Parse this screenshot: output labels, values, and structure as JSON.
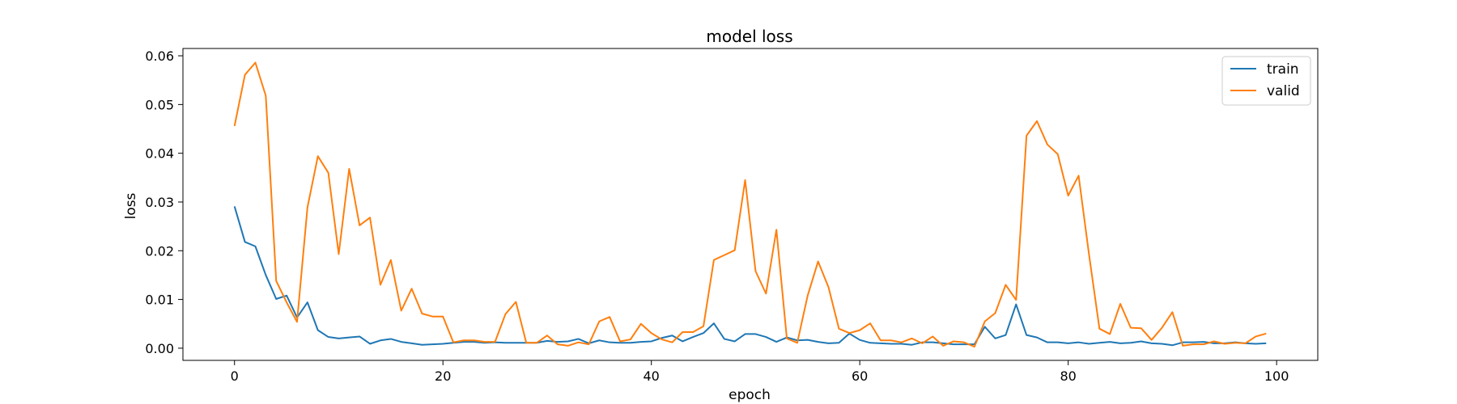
{
  "chart_data": {
    "type": "line",
    "title": "model loss",
    "xlabel": "epoch",
    "ylabel": "loss",
    "xlim": [
      -4.95,
      103.95
    ],
    "ylim": [
      -0.0025,
      0.0615
    ],
    "xticks": [
      0,
      20,
      40,
      60,
      80,
      100
    ],
    "xtick_labels": [
      "0",
      "20",
      "40",
      "60",
      "80",
      "100"
    ],
    "yticks": [
      0.0,
      0.01,
      0.02,
      0.03,
      0.04,
      0.05,
      0.06
    ],
    "ytick_labels": [
      "0.00",
      "0.01",
      "0.02",
      "0.03",
      "0.04",
      "0.05",
      "0.06"
    ],
    "grid": false,
    "legend_position": "top-right",
    "series": [
      {
        "name": "train",
        "color": "#1f77b4",
        "values": [
          0.0291,
          0.0218,
          0.0209,
          0.015,
          0.0101,
          0.0108,
          0.0063,
          0.0094,
          0.0037,
          0.0023,
          0.002,
          0.0022,
          0.0024,
          0.0009,
          0.0016,
          0.0019,
          0.0013,
          0.001,
          0.0007,
          0.0008,
          0.0009,
          0.0011,
          0.0013,
          0.0013,
          0.0011,
          0.0012,
          0.0011,
          0.0011,
          0.0011,
          0.0011,
          0.0015,
          0.0013,
          0.0014,
          0.0019,
          0.001,
          0.0016,
          0.0012,
          0.0011,
          0.0011,
          0.0013,
          0.0014,
          0.0021,
          0.0026,
          0.0014,
          0.0023,
          0.0031,
          0.0051,
          0.0019,
          0.0014,
          0.0029,
          0.0029,
          0.0023,
          0.0013,
          0.0022,
          0.0016,
          0.0017,
          0.0013,
          0.001,
          0.0011,
          0.003,
          0.0017,
          0.0011,
          0.001,
          0.0009,
          0.0009,
          0.0007,
          0.0012,
          0.0012,
          0.001,
          0.0008,
          0.0008,
          0.0008,
          0.0044,
          0.002,
          0.0027,
          0.009,
          0.0027,
          0.0022,
          0.0012,
          0.0012,
          0.001,
          0.0012,
          0.0009,
          0.0011,
          0.0013,
          0.001,
          0.0011,
          0.0014,
          0.001,
          0.0009,
          0.0006,
          0.0012,
          0.0012,
          0.0013,
          0.001,
          0.001,
          0.0012,
          0.001,
          0.0009,
          0.001
        ]
      },
      {
        "name": "valid",
        "color": "#ff7f0e",
        "values": [
          0.0456,
          0.0561,
          0.0586,
          0.0518,
          0.0138,
          0.0094,
          0.0054,
          0.0289,
          0.0394,
          0.036,
          0.0193,
          0.0368,
          0.0252,
          0.0268,
          0.013,
          0.0181,
          0.0077,
          0.0122,
          0.0071,
          0.0065,
          0.0065,
          0.0012,
          0.0016,
          0.0016,
          0.0013,
          0.0013,
          0.007,
          0.0095,
          0.0011,
          0.0011,
          0.0026,
          0.0008,
          0.0005,
          0.0012,
          0.0008,
          0.0055,
          0.0064,
          0.0014,
          0.0018,
          0.005,
          0.0031,
          0.0018,
          0.0012,
          0.0033,
          0.0033,
          0.0045,
          0.0181,
          0.0191,
          0.0201,
          0.0345,
          0.0158,
          0.0112,
          0.0243,
          0.002,
          0.0011,
          0.0108,
          0.0178,
          0.0125,
          0.004,
          0.0031,
          0.0037,
          0.0051,
          0.0016,
          0.0016,
          0.0012,
          0.002,
          0.001,
          0.0024,
          0.0005,
          0.0014,
          0.0012,
          0.0003,
          0.0055,
          0.0072,
          0.013,
          0.0099,
          0.0436,
          0.0466,
          0.0418,
          0.0398,
          0.0313,
          0.0354,
          0.0192,
          0.004,
          0.0029,
          0.0091,
          0.0042,
          0.0041,
          0.0017,
          0.0042,
          0.0074,
          0.0005,
          0.0008,
          0.0008,
          0.0014,
          0.0009,
          0.0011,
          0.001,
          0.0024,
          0.003
        ]
      }
    ]
  }
}
